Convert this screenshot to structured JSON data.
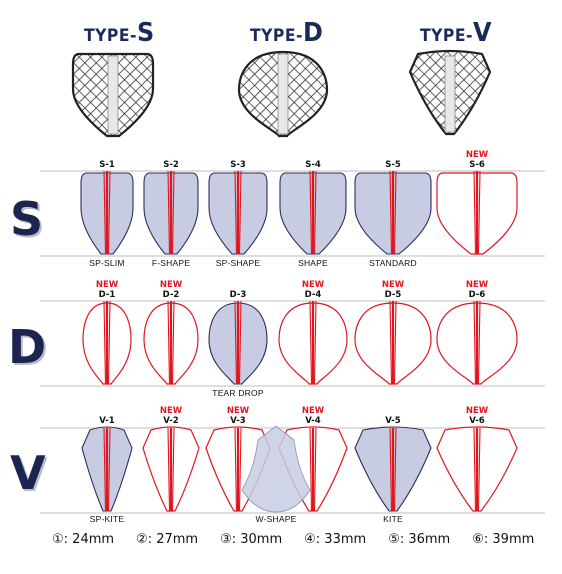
{
  "types": [
    {
      "label_big": "TYPE-",
      "letter": "S"
    },
    {
      "label_big": "TYPE-",
      "letter": "D"
    },
    {
      "label_big": "TYPE-",
      "letter": "V"
    }
  ],
  "rows": [
    {
      "label": "S",
      "items": [
        {
          "code": "S-1",
          "new": "",
          "caption": "SP-SLIM"
        },
        {
          "code": "S-2",
          "new": "",
          "caption": "F-SHAPE"
        },
        {
          "code": "S-3",
          "new": "",
          "caption": "SP-SHAPE"
        },
        {
          "code": "S-4",
          "new": "",
          "caption": "SHAPE"
        },
        {
          "code": "S-5",
          "new": "",
          "caption": "STANDARD"
        },
        {
          "code": "S-6",
          "new": "NEW",
          "caption": ""
        }
      ]
    },
    {
      "label": "D",
      "items": [
        {
          "code": "D-1",
          "new": "NEW",
          "caption": ""
        },
        {
          "code": "D-2",
          "new": "NEW",
          "caption": ""
        },
        {
          "code": "D-3",
          "new": "",
          "caption": "TEAR DROP"
        },
        {
          "code": "D-4",
          "new": "NEW",
          "caption": ""
        },
        {
          "code": "D-5",
          "new": "NEW",
          "caption": ""
        },
        {
          "code": "D-6",
          "new": "NEW",
          "caption": ""
        }
      ]
    },
    {
      "label": "V",
      "items": [
        {
          "code": "V-1",
          "new": "",
          "caption": "SP-KITE"
        },
        {
          "code": "V-2",
          "new": "NEW",
          "caption": ""
        },
        {
          "code": "V-3",
          "new": "NEW",
          "caption": "W-SHAPE"
        },
        {
          "code": "V-4",
          "new": "NEW",
          "caption": ""
        },
        {
          "code": "V-5",
          "new": "",
          "caption": "KITE"
        },
        {
          "code": "V-6",
          "new": "NEW",
          "caption": ""
        }
      ]
    }
  ],
  "legend": [
    "①: 24mm",
    "②: 27mm",
    "③: 30mm",
    "④: 33mm",
    "⑤: 36mm",
    "⑥: 39mm"
  ],
  "colors": {
    "outline": "#e0161e",
    "fill": "#c7cce3",
    "fill_stroke": "#2b2f5c",
    "label": "#1b2550"
  }
}
